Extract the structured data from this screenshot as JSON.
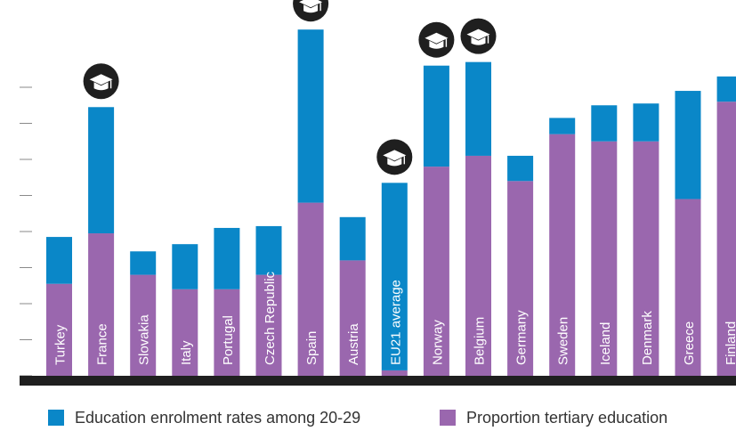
{
  "colors": {
    "enrolment": "#0a87c8",
    "tertiary": "#9a67ae",
    "baseline": "#1f1f1f",
    "tick": "#8a8a8a",
    "cap_circle": "#1f1f1f",
    "cap_icon": "#ffffff"
  },
  "chart_data": {
    "type": "bar",
    "stacked": true,
    "ylim": [
      0,
      100
    ],
    "grid": false,
    "legend_position": "bottom",
    "categories": [
      "Turkey",
      "France",
      "Slovakia",
      "Italy",
      "Portugal",
      "Czech Republic",
      "Spain",
      "Austria",
      "EU21 average",
      "Norway",
      "Belgium",
      "Germany",
      "Sweden",
      "Iceland",
      "Denmark",
      "Greece",
      "Finland"
    ],
    "label_style": [
      "purple",
      "blue",
      "purple",
      "purple",
      "purple",
      "purple",
      "blue",
      "purple",
      "blue",
      "blue",
      "blue",
      "purple",
      "purple",
      "purple",
      "purple",
      "purple",
      "purple"
    ],
    "highlighted_icon": "graduation-cap-icon",
    "highlighted": [
      "France",
      "Spain",
      "EU21 average",
      "Norway",
      "Belgium"
    ],
    "series": [
      {
        "name": "Proportion tertiary education",
        "color_key": "tertiary",
        "values": [
          25.5,
          39.5,
          28,
          24,
          24,
          28,
          48,
          32,
          1.5,
          58,
          61,
          54,
          67,
          65,
          65,
          49,
          76
        ]
      },
      {
        "name": "Education enrolment rates among 20-29",
        "color_key": "enrolment",
        "values": [
          13,
          35,
          6.5,
          12.5,
          17,
          13.5,
          48,
          12,
          52,
          28,
          26,
          7,
          4.5,
          10,
          10.5,
          30,
          7
        ]
      }
    ]
  },
  "legend": [
    {
      "label": "Education enrolment rates among 20-29",
      "color_key": "enrolment"
    },
    {
      "label": "Proportion tertiary education",
      "color_key": "tertiary"
    }
  ]
}
